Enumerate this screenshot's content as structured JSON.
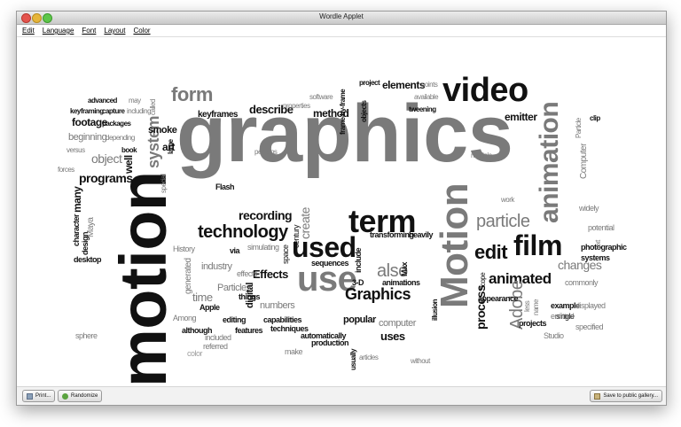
{
  "window": {
    "title": "Wordle Applet"
  },
  "menu": {
    "items": [
      "Edit",
      "Language",
      "Font",
      "Layout",
      "Color"
    ]
  },
  "buttons": {
    "print": "Print...",
    "randomize": "Randomize",
    "save": "Save to public gallery..."
  },
  "colors": {
    "black": "#111111",
    "gray": "#7a7a7a",
    "lightgray": "#9e9e9e"
  },
  "words": [
    {
      "text": "graphics",
      "c": "gray"
    },
    {
      "text": "motion",
      "c": "black"
    },
    {
      "text": "Motion",
      "c": "gray"
    },
    {
      "text": "animation",
      "c": "gray"
    },
    {
      "text": "video",
      "c": "black"
    },
    {
      "text": "term",
      "c": "black"
    },
    {
      "text": "used",
      "c": "black"
    },
    {
      "text": "use",
      "c": "gray"
    },
    {
      "text": "film",
      "c": "black"
    },
    {
      "text": "form",
      "c": "gray"
    },
    {
      "text": "system",
      "c": "gray"
    },
    {
      "text": "technology",
      "c": "black"
    },
    {
      "text": "particle",
      "c": "gray"
    },
    {
      "text": "edit",
      "c": "black"
    },
    {
      "text": "animated",
      "c": "black"
    },
    {
      "text": "Graphics",
      "c": "black"
    },
    {
      "text": "Adobe",
      "c": "gray"
    },
    {
      "text": "also",
      "c": "gray"
    },
    {
      "text": "process",
      "c": "black"
    },
    {
      "text": "programs",
      "c": "black"
    },
    {
      "text": "changes",
      "c": "gray"
    },
    {
      "text": "recording",
      "c": "black"
    },
    {
      "text": "create",
      "c": "gray"
    },
    {
      "text": "object",
      "c": "gray"
    },
    {
      "text": "elements",
      "c": "black"
    },
    {
      "text": "describe",
      "c": "black"
    },
    {
      "text": "method",
      "c": "black"
    },
    {
      "text": "footage",
      "c": "black"
    },
    {
      "text": "beginning",
      "c": "gray"
    },
    {
      "text": "art",
      "c": "black"
    },
    {
      "text": "smoke",
      "c": "black"
    },
    {
      "text": "keyframes",
      "c": "black"
    },
    {
      "text": "emitter",
      "c": "black"
    },
    {
      "text": "Effects",
      "c": "black"
    },
    {
      "text": "industry",
      "c": "gray"
    },
    {
      "text": "time",
      "c": "gray"
    },
    {
      "text": "Particles",
      "c": "gray"
    },
    {
      "text": "numbers",
      "c": "gray"
    },
    {
      "text": "popular",
      "c": "black"
    },
    {
      "text": "computer",
      "c": "gray"
    },
    {
      "text": "uses",
      "c": "black"
    },
    {
      "text": "Computer",
      "c": "gray"
    },
    {
      "text": "photographic",
      "c": "black"
    },
    {
      "text": "systems",
      "c": "black"
    },
    {
      "text": "many",
      "c": "black"
    },
    {
      "text": "well",
      "c": "black"
    },
    {
      "text": "Flash",
      "c": "black"
    },
    {
      "text": "generated",
      "c": "gray"
    },
    {
      "text": "digital",
      "c": "black"
    },
    {
      "text": "techniques",
      "c": "black"
    },
    {
      "text": "production",
      "c": "black"
    },
    {
      "text": "transforming",
      "c": "black"
    },
    {
      "text": "heavily",
      "c": "black"
    },
    {
      "text": "animations",
      "c": "black"
    },
    {
      "text": "appearance",
      "c": "black"
    },
    {
      "text": "projects",
      "c": "black"
    },
    {
      "text": "example",
      "c": "black"
    },
    {
      "text": "displayed",
      "c": "gray"
    },
    {
      "text": "specified",
      "c": "gray"
    },
    {
      "text": "potential",
      "c": "gray"
    },
    {
      "text": "commonly",
      "c": "gray"
    },
    {
      "text": "widely",
      "c": "gray"
    },
    {
      "text": "sequences",
      "c": "black"
    },
    {
      "text": "capabilities",
      "c": "black"
    },
    {
      "text": "editing",
      "c": "black"
    },
    {
      "text": "features",
      "c": "black"
    },
    {
      "text": "things",
      "c": "black"
    },
    {
      "text": "Apple",
      "c": "black"
    },
    {
      "text": "Among",
      "c": "gray"
    },
    {
      "text": "although",
      "c": "black"
    },
    {
      "text": "included",
      "c": "gray"
    },
    {
      "text": "referred",
      "c": "gray"
    },
    {
      "text": "color",
      "c": "lightgray"
    },
    {
      "text": "make",
      "c": "gray"
    },
    {
      "text": "automatically",
      "c": "black"
    },
    {
      "text": "without",
      "c": "gray"
    },
    {
      "text": "articles",
      "c": "gray"
    },
    {
      "text": "usually",
      "c": "black"
    },
    {
      "text": "include",
      "c": "black"
    },
    {
      "text": "Max",
      "c": "black"
    },
    {
      "text": "3-D",
      "c": "black"
    },
    {
      "text": "work",
      "c": "gray"
    },
    {
      "text": "Scope",
      "c": "black"
    },
    {
      "text": "less",
      "c": "gray"
    },
    {
      "text": "name",
      "c": "gray"
    },
    {
      "text": "single",
      "c": "black"
    },
    {
      "text": "emitted",
      "c": "gray"
    },
    {
      "text": "Studio",
      "c": "gray"
    },
    {
      "text": "Maya",
      "c": "gray"
    },
    {
      "text": "desktop",
      "c": "black"
    },
    {
      "text": "design",
      "c": "black"
    },
    {
      "text": "character",
      "c": "black"
    },
    {
      "text": "sphere",
      "c": "gray"
    },
    {
      "text": "History",
      "c": "gray"
    },
    {
      "text": "via",
      "c": "black"
    },
    {
      "text": "simulating",
      "c": "gray"
    },
    {
      "text": "century",
      "c": "black"
    },
    {
      "text": "space",
      "c": "black"
    },
    {
      "text": "effects",
      "c": "gray"
    },
    {
      "text": "keyframing",
      "c": "black"
    },
    {
      "text": "advanced",
      "c": "black"
    },
    {
      "text": "capture",
      "c": "black"
    },
    {
      "text": "packages",
      "c": "black"
    },
    {
      "text": "including",
      "c": "gray"
    },
    {
      "text": "depending",
      "c": "gray"
    },
    {
      "text": "book",
      "c": "black"
    },
    {
      "text": "versus",
      "c": "gray"
    },
    {
      "text": "may",
      "c": "gray"
    },
    {
      "text": "called",
      "c": "gray"
    },
    {
      "text": "large",
      "c": "black"
    },
    {
      "text": "special",
      "c": "gray"
    },
    {
      "text": "project",
      "c": "black"
    },
    {
      "text": "points",
      "c": "gray"
    },
    {
      "text": "objects",
      "c": "black"
    },
    {
      "text": "available",
      "c": "gray"
    },
    {
      "text": "tweening",
      "c": "black"
    },
    {
      "text": "properties",
      "c": "gray"
    },
    {
      "text": "software",
      "c": "gray"
    },
    {
      "text": "frame-by-frame",
      "c": "black"
    },
    {
      "text": "perhaps",
      "c": "gray"
    },
    {
      "text": "multiple",
      "c": "gray"
    },
    {
      "text": "clip",
      "c": "black"
    },
    {
      "text": "Particle",
      "c": "gray"
    },
    {
      "text": "illusion",
      "c": "black"
    },
    {
      "text": "text",
      "c": "gray"
    },
    {
      "text": "forces",
      "c": "gray"
    }
  ]
}
